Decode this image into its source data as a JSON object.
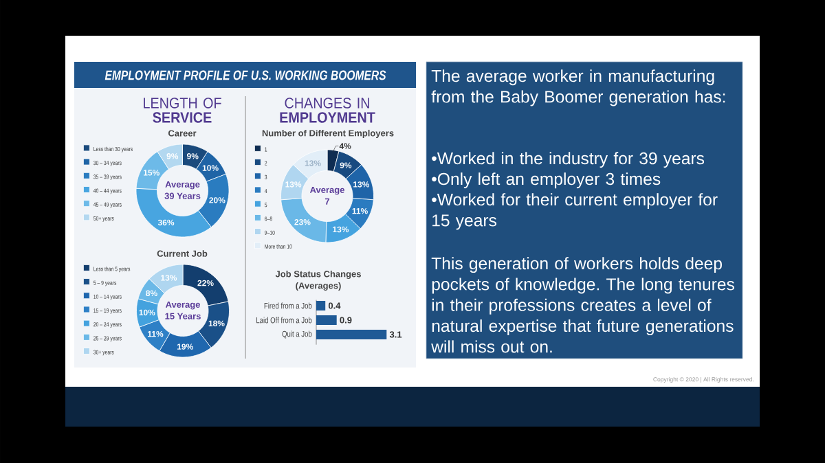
{
  "chart_data": [
    {
      "type": "other",
      "title": "EMPLOYMENT PROFILE OF U.S. WORKING BOOMERS"
    },
    {
      "type": "donut",
      "title": "LENGTH OF **SERVICE**",
      "subtitle": "Career",
      "categories": [
        "Less than 30 years",
        "30 – 34 years",
        "35 – 39 years",
        "40 – 44 years",
        "45 – 49 years",
        "50+ years"
      ],
      "values": [
        9,
        10,
        20,
        36,
        15,
        9
      ],
      "colors": [
        "#1A4A7C",
        "#1F64A6",
        "#2A7CC0",
        "#48A5E0",
        "#6DBAE8",
        "#B3D8F0"
      ],
      "value_labels": [
        "9%",
        "10%",
        "20%",
        "36%",
        "15%",
        "9%"
      ],
      "legend": "left",
      "annotations": [
        "Average",
        "39 Years"
      ]
    },
    {
      "type": "donut",
      "title": "CHANGES IN **EMPLOYMENT**",
      "subtitle": "Number of Different Employers",
      "categories": [
        "1",
        "2",
        "3",
        "4",
        "5",
        "6–8",
        "9–10",
        "More than 10"
      ],
      "values": [
        4,
        9,
        13,
        11,
        13,
        23,
        13,
        13
      ],
      "colors": [
        "#0F2D52",
        "#184A80",
        "#1F64A8",
        "#2B7BC0",
        "#45A3DF",
        "#6AB8E7",
        "#B0D6F0",
        "#E2EEF8"
      ],
      "value_labels": [
        "4%",
        "9%",
        "13%",
        "11%",
        "13%",
        "23%",
        "13%",
        "13%"
      ],
      "legend": "left",
      "annotations": [
        "Average",
        "7"
      ]
    },
    {
      "type": "donut",
      "title": "Current Job",
      "categories": [
        "Less than 5 years",
        "5 – 9 years",
        "10 – 14 years",
        "15 – 19 years",
        "20 – 24 years",
        "25 – 29 years",
        "30+ years"
      ],
      "values": [
        22,
        18,
        19,
        11,
        10,
        8,
        13
      ],
      "colors": [
        "#133E6E",
        "#1A5088",
        "#1F67AE",
        "#2E80C6",
        "#44A2DE",
        "#6AB8E7",
        "#AFD6F0"
      ],
      "value_labels": [
        "22%",
        "18%",
        "19%",
        "11%",
        "10%",
        "8%",
        "13%"
      ],
      "legend": "left",
      "annotations": [
        "Average",
        "15 Years"
      ]
    },
    {
      "type": "bar",
      "title": "Job Status Changes",
      "subtitle": "(Averages)",
      "orientation": "horizontal",
      "categories": [
        "Fired from a Job",
        "Laid Off from a Job",
        "Quit a Job"
      ],
      "values": [
        0.4,
        0.9,
        3.1
      ],
      "color": "#1F5A96",
      "data_labels": true
    },
    {
      "type": "other",
      "annotations": [
        "The average worker in manufacturing from the Baby Boomer generation has:",
        "•Worked in the industry for 39 years",
        "•Only left an employer 3 times",
        "•Worked for their current employer for 15 years",
        "This generation of workers holds deep pockets of knowledge. The long tenures in their professions creates a level of natural expertise that future generations will miss out on.",
        "Copyright © 2020 | All Rights reserved."
      ]
    }
  ]
}
